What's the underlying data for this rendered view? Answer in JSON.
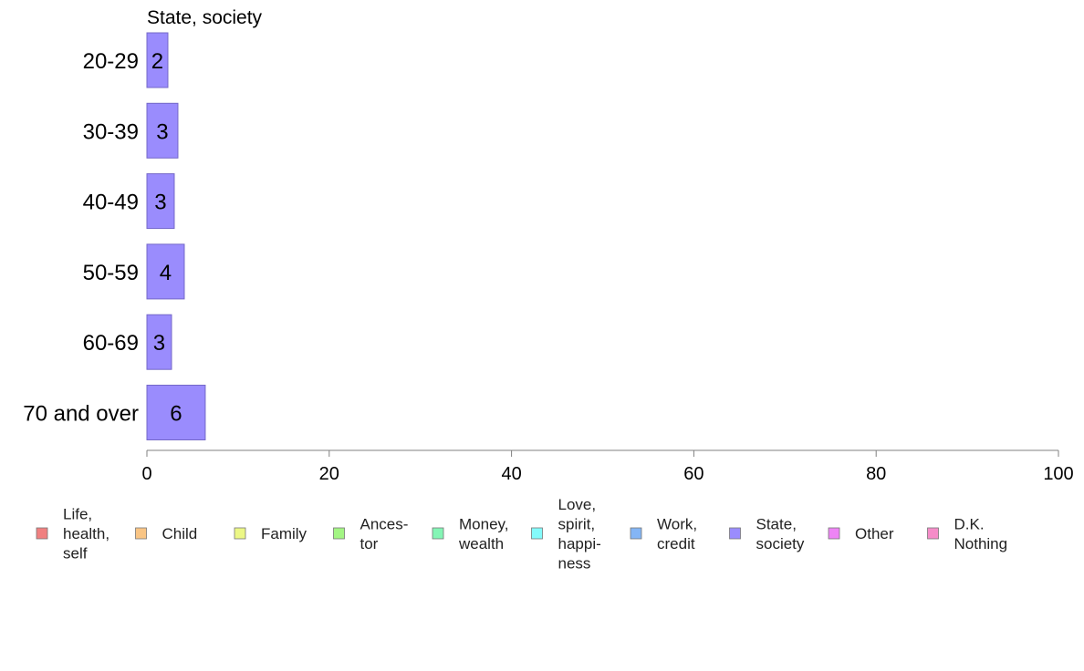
{
  "chart_data": {
    "type": "bar",
    "orientation": "horizontal",
    "title": "State, society",
    "categories": [
      "20-29",
      "30-39",
      "40-49",
      "50-59",
      "60-69",
      "70 and over"
    ],
    "series": [
      {
        "name": "State, society",
        "color": "#9a8cfd",
        "values": [
          2.3,
          3.4,
          3.0,
          4.1,
          2.7,
          6.4
        ],
        "labels": [
          "2",
          "3",
          "3",
          "4",
          "3",
          "6"
        ]
      }
    ],
    "xlim": [
      0,
      100
    ],
    "xticks": [
      "0",
      "20",
      "40",
      "60",
      "80",
      "100"
    ],
    "grid": false,
    "legend_position": "bottom",
    "legend": [
      {
        "lines": [
          "Life,",
          "health,",
          "self"
        ],
        "color": "#f08080"
      },
      {
        "lines": [
          "Child"
        ],
        "color": "#f9c585"
      },
      {
        "lines": [
          "Family"
        ],
        "color": "#ecf786"
      },
      {
        "lines": [
          "Ances-",
          "tor"
        ],
        "color": "#a3f584"
      },
      {
        "lines": [
          "Money,",
          "wealth"
        ],
        "color": "#84f5b5"
      },
      {
        "lines": [
          "Love,",
          "spirit,",
          "happi-",
          "ness"
        ],
        "color": "#84fbfb"
      },
      {
        "lines": [
          "Work,",
          "credit"
        ],
        "color": "#84b5f5"
      },
      {
        "lines": [
          "State,",
          "society"
        ],
        "color": "#9a8cfd"
      },
      {
        "lines": [
          "Other"
        ],
        "color": "#ee84f5"
      },
      {
        "lines": [
          "D.K.",
          "Nothing"
        ],
        "color": "#f58cc8"
      }
    ]
  }
}
